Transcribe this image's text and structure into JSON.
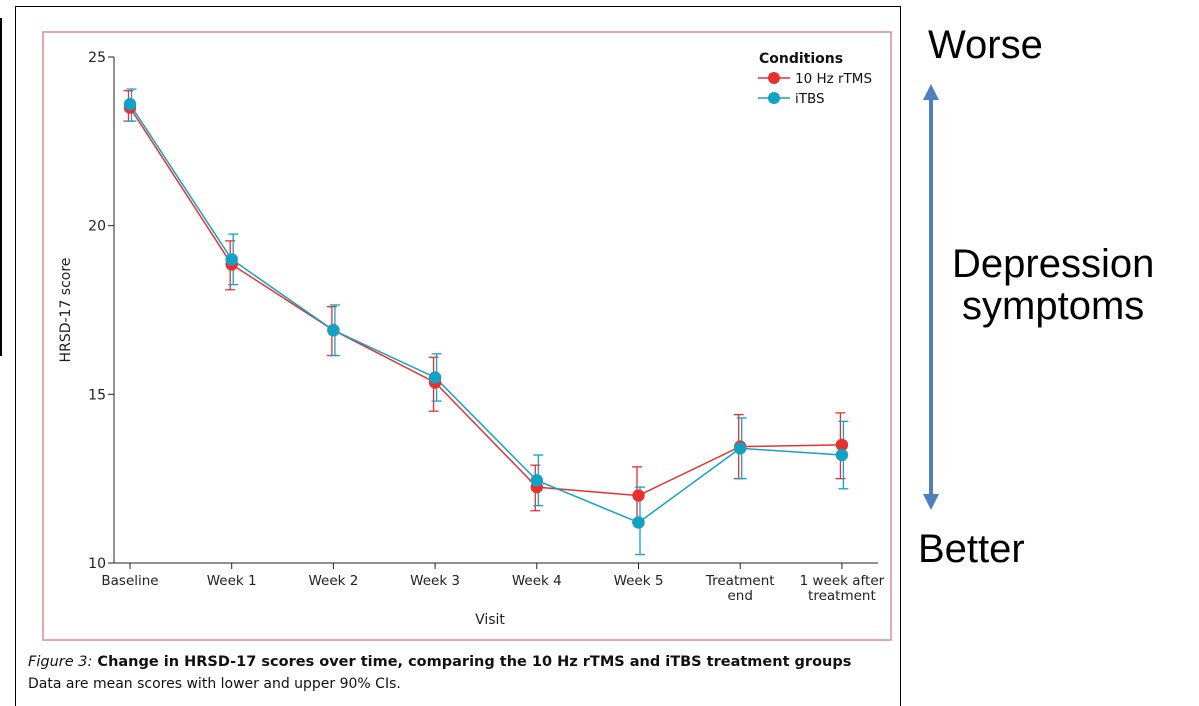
{
  "chart_data": {
    "type": "line",
    "ylabel": "HRSD-17 score",
    "xlabel": "Visit",
    "ylim": [
      10,
      25
    ],
    "yticks": [
      10,
      15,
      20,
      25
    ],
    "categories": [
      "Baseline",
      "Week 1",
      "Week 2",
      "Week 3",
      "Week 4",
      "Week 5",
      "Treatment end",
      "1 week after treatment"
    ],
    "category_lines": [
      [
        "Baseline"
      ],
      [
        "Week 1"
      ],
      [
        "Week 2"
      ],
      [
        "Week 3"
      ],
      [
        "Week 4"
      ],
      [
        "Week 5"
      ],
      [
        "Treatment",
        "end"
      ],
      [
        "1 week after",
        "treatment"
      ]
    ],
    "legend": {
      "title": "Conditions",
      "position": "top-right"
    },
    "grid": false,
    "series": [
      {
        "name": "10 Hz rTMS",
        "color": "#e8312f",
        "values": [
          23.5,
          18.85,
          16.9,
          15.35,
          12.25,
          12.0,
          13.45,
          13.5
        ],
        "lower": [
          23.1,
          18.1,
          16.15,
          14.5,
          11.55,
          11.2,
          12.5,
          12.5
        ],
        "upper": [
          24.0,
          19.55,
          17.6,
          16.1,
          12.9,
          12.85,
          14.4,
          14.45
        ]
      },
      {
        "name": "iTBS",
        "color": "#12a3c4",
        "values": [
          23.6,
          19.0,
          16.9,
          15.5,
          12.45,
          11.2,
          13.4,
          13.2
        ],
        "lower": [
          23.1,
          18.25,
          16.15,
          14.8,
          11.7,
          10.25,
          12.5,
          12.2
        ],
        "upper": [
          24.05,
          19.75,
          17.65,
          16.2,
          13.2,
          12.25,
          14.3,
          14.2
        ]
      }
    ]
  },
  "caption": {
    "figure_label": "Figure 3:",
    "title": " Change in HRSD-17 scores over time, comparing the 10 Hz rTMS and iTBS treatment groups",
    "note": "Data are mean scores with lower and upper 90% CIs."
  },
  "annotations": {
    "worse": "Worse",
    "better": "Better",
    "depression_line1": "Depression",
    "depression_line2": "symptoms",
    "arrow_color": "#4f7fbf"
  },
  "colors": {
    "frame_border": "#d98a9c"
  }
}
